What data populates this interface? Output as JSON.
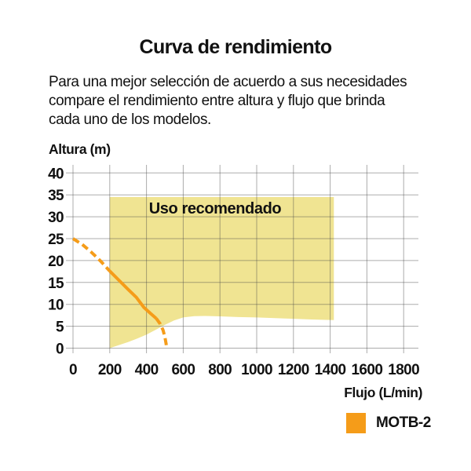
{
  "title": "Curva de rendimiento",
  "description_lines": [
    "Para una mejor selección de acuerdo a sus necesidades",
    "compare el rendimiento entre altura y flujo que brinda",
    "cada uno de los modelos."
  ],
  "chart_data": {
    "type": "line",
    "title": "Curva de rendimiento",
    "xlabel": "Flujo (L/min)",
    "ylabel": "Altura (m)",
    "xlim": [
      0,
      1880
    ],
    "ylim": [
      0,
      42
    ],
    "x_ticks": [
      0,
      200,
      400,
      600,
      800,
      1000,
      1200,
      1400,
      1600,
      1800
    ],
    "y_ticks": [
      0,
      5,
      10,
      15,
      20,
      25,
      30,
      35,
      40
    ],
    "grid": true,
    "colors": {
      "curve": "#F59C19",
      "region": "#F0E492",
      "gridline": "rgba(70,70,70,0.45)",
      "text": "#111111"
    },
    "recommended_region": {
      "label": "Uso recomendado",
      "x_left": 200,
      "x_right": 1420,
      "y_top": 34.5,
      "bottom_boundary": [
        [
          200,
          0
        ],
        [
          250,
          0.7
        ],
        [
          300,
          1.4
        ],
        [
          350,
          2.2
        ],
        [
          400,
          3.1
        ],
        [
          450,
          4.2
        ],
        [
          500,
          5.3
        ],
        [
          550,
          6.3
        ],
        [
          600,
          7.0
        ],
        [
          660,
          7.3
        ],
        [
          720,
          7.35
        ],
        [
          800,
          7.25
        ],
        [
          900,
          7.1
        ],
        [
          1000,
          7.0
        ],
        [
          1100,
          6.85
        ],
        [
          1200,
          6.7
        ],
        [
          1300,
          6.55
        ],
        [
          1420,
          6.4
        ]
      ]
    },
    "series": [
      {
        "name": "MOTB-2",
        "color": "#F59C19",
        "segments": [
          {
            "style": "dashed",
            "points": [
              [
                0,
                25
              ],
              [
                50,
                23.7
              ],
              [
                100,
                21.9
              ],
              [
                150,
                19.9
              ],
              [
                200,
                17.6
              ]
            ]
          },
          {
            "style": "solid",
            "points": [
              [
                200,
                17.6
              ],
              [
                250,
                15.5
              ],
              [
                300,
                13.4
              ],
              [
                345,
                11.6
              ],
              [
                386,
                9.3
              ],
              [
                420,
                8.0
              ],
              [
                453,
                6.8
              ]
            ]
          },
          {
            "style": "dashed",
            "points": [
              [
                453,
                6.8
              ],
              [
                475,
                5.5
              ],
              [
                490,
                4.1
              ],
              [
                500,
                2.6
              ],
              [
                507,
                1.0
              ],
              [
                509,
                0.1
              ]
            ]
          }
        ]
      }
    ],
    "legend": {
      "position": "bottom-right",
      "entries": [
        {
          "label": "MOTB-2",
          "color": "#F59C19"
        }
      ]
    }
  }
}
